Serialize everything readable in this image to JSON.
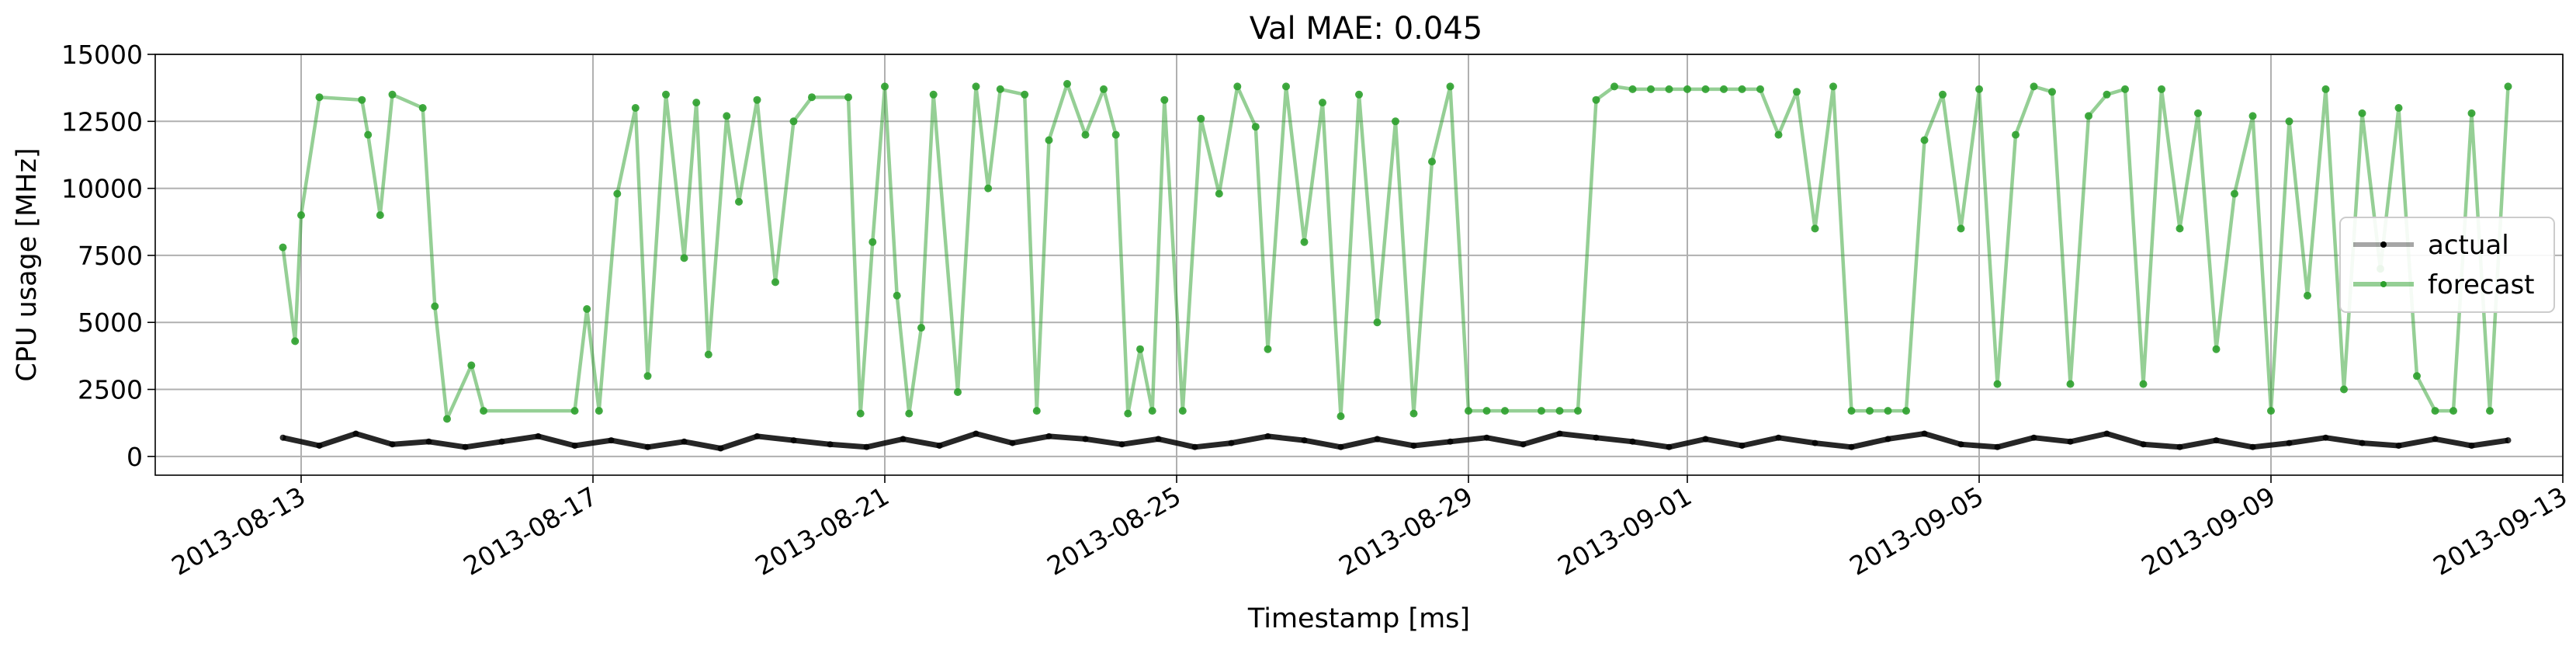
{
  "chart_data": {
    "type": "line",
    "title": "Val MAE: 0.045",
    "xlabel": "Timestamp [ms]",
    "ylabel": "CPU usage [MHz]",
    "xlim": [
      "2013-08-11",
      "2013-09-13"
    ],
    "ylim": [
      -700,
      15000
    ],
    "x_ticks": [
      "2013-08-13",
      "2013-08-17",
      "2013-08-21",
      "2013-08-25",
      "2013-08-29",
      "2013-09-01",
      "2013-09-05",
      "2013-09-09",
      "2013-09-13"
    ],
    "y_ticks": [
      0,
      2500,
      5000,
      7500,
      10000,
      12500,
      15000
    ],
    "y_tick_labels": [
      "0",
      "2500",
      "5000",
      "7500",
      "10000",
      "12500",
      "15000"
    ],
    "grid": true,
    "legend_position": "center-right",
    "series": [
      {
        "name": "actual",
        "color": "#000000",
        "points": [
          [
            "2013-08-12 18:00",
            700
          ],
          [
            "2013-08-13 06:00",
            400
          ],
          [
            "2013-08-13 18:00",
            850
          ],
          [
            "2013-08-14 06:00",
            450
          ],
          [
            "2013-08-14 18:00",
            550
          ],
          [
            "2013-08-15 06:00",
            350
          ],
          [
            "2013-08-15 18:00",
            550
          ],
          [
            "2013-08-16 06:00",
            750
          ],
          [
            "2013-08-16 18:00",
            400
          ],
          [
            "2013-08-17 06:00",
            600
          ],
          [
            "2013-08-17 18:00",
            350
          ],
          [
            "2013-08-18 06:00",
            550
          ],
          [
            "2013-08-18 18:00",
            300
          ],
          [
            "2013-08-19 06:00",
            750
          ],
          [
            "2013-08-19 18:00",
            600
          ],
          [
            "2013-08-20 06:00",
            450
          ],
          [
            "2013-08-20 18:00",
            350
          ],
          [
            "2013-08-21 06:00",
            650
          ],
          [
            "2013-08-21 18:00",
            400
          ],
          [
            "2013-08-22 06:00",
            850
          ],
          [
            "2013-08-22 18:00",
            500
          ],
          [
            "2013-08-23 06:00",
            750
          ],
          [
            "2013-08-23 18:00",
            650
          ],
          [
            "2013-08-24 06:00",
            450
          ],
          [
            "2013-08-24 18:00",
            650
          ],
          [
            "2013-08-25 06:00",
            350
          ],
          [
            "2013-08-25 18:00",
            500
          ],
          [
            "2013-08-26 06:00",
            750
          ],
          [
            "2013-08-26 18:00",
            600
          ],
          [
            "2013-08-27 06:00",
            350
          ],
          [
            "2013-08-27 18:00",
            650
          ],
          [
            "2013-08-28 06:00",
            400
          ],
          [
            "2013-08-28 18:00",
            550
          ],
          [
            "2013-08-29 06:00",
            700
          ],
          [
            "2013-08-29 18:00",
            450
          ],
          [
            "2013-08-30 06:00",
            850
          ],
          [
            "2013-08-30 18:00",
            700
          ],
          [
            "2013-08-31 06:00",
            550
          ],
          [
            "2013-08-31 18:00",
            350
          ],
          [
            "2013-09-01 06:00",
            650
          ],
          [
            "2013-09-01 18:00",
            400
          ],
          [
            "2013-09-02 06:00",
            700
          ],
          [
            "2013-09-02 18:00",
            500
          ],
          [
            "2013-09-03 06:00",
            350
          ],
          [
            "2013-09-03 18:00",
            650
          ],
          [
            "2013-09-04 06:00",
            850
          ],
          [
            "2013-09-04 18:00",
            450
          ],
          [
            "2013-09-05 06:00",
            350
          ],
          [
            "2013-09-05 18:00",
            700
          ],
          [
            "2013-09-06 06:00",
            550
          ],
          [
            "2013-09-06 18:00",
            850
          ],
          [
            "2013-09-07 06:00",
            450
          ],
          [
            "2013-09-07 18:00",
            350
          ],
          [
            "2013-09-08 06:00",
            600
          ],
          [
            "2013-09-08 18:00",
            350
          ],
          [
            "2013-09-09 06:00",
            500
          ],
          [
            "2013-09-09 18:00",
            700
          ],
          [
            "2013-09-10 06:00",
            500
          ],
          [
            "2013-09-10 18:00",
            400
          ],
          [
            "2013-09-11 06:00",
            650
          ],
          [
            "2013-09-11 18:00",
            400
          ],
          [
            "2013-09-12 06:00",
            600
          ]
        ]
      },
      {
        "name": "forecast",
        "color": "#2ca02c",
        "points": [
          [
            "2013-08-12 18:00",
            7800
          ],
          [
            "2013-08-12 22:00",
            4300
          ],
          [
            "2013-08-13 00:00",
            9000
          ],
          [
            "2013-08-13 06:00",
            13400
          ],
          [
            "2013-08-13 20:00",
            13300
          ],
          [
            "2013-08-13 22:00",
            12000
          ],
          [
            "2013-08-14 02:00",
            9000
          ],
          [
            "2013-08-14 06:00",
            13500
          ],
          [
            "2013-08-14 16:00",
            13000
          ],
          [
            "2013-08-14 20:00",
            5600
          ],
          [
            "2013-08-15 00:00",
            1400
          ],
          [
            "2013-08-15 08:00",
            3400
          ],
          [
            "2013-08-15 12:00",
            1700
          ],
          [
            "2013-08-16 18:00",
            1700
          ],
          [
            "2013-08-16 22:00",
            5500
          ],
          [
            "2013-08-17 02:00",
            1700
          ],
          [
            "2013-08-17 08:00",
            9800
          ],
          [
            "2013-08-17 14:00",
            13000
          ],
          [
            "2013-08-17 18:00",
            3000
          ],
          [
            "2013-08-18 00:00",
            13500
          ],
          [
            "2013-08-18 06:00",
            7400
          ],
          [
            "2013-08-18 10:00",
            13200
          ],
          [
            "2013-08-18 14:00",
            3800
          ],
          [
            "2013-08-18 20:00",
            12700
          ],
          [
            "2013-08-19 00:00",
            9500
          ],
          [
            "2013-08-19 06:00",
            13300
          ],
          [
            "2013-08-19 12:00",
            6500
          ],
          [
            "2013-08-19 18:00",
            12500
          ],
          [
            "2013-08-20 00:00",
            13400
          ],
          [
            "2013-08-20 12:00",
            13400
          ],
          [
            "2013-08-20 16:00",
            1600
          ],
          [
            "2013-08-20 20:00",
            8000
          ],
          [
            "2013-08-21 00:00",
            13800
          ],
          [
            "2013-08-21 04:00",
            6000
          ],
          [
            "2013-08-21 08:00",
            1600
          ],
          [
            "2013-08-21 12:00",
            4800
          ],
          [
            "2013-08-21 16:00",
            13500
          ],
          [
            "2013-08-22 00:00",
            2400
          ],
          [
            "2013-08-22 06:00",
            13800
          ],
          [
            "2013-08-22 10:00",
            10000
          ],
          [
            "2013-08-22 14:00",
            13700
          ],
          [
            "2013-08-22 22:00",
            13500
          ],
          [
            "2013-08-23 02:00",
            1700
          ],
          [
            "2013-08-23 06:00",
            11800
          ],
          [
            "2013-08-23 12:00",
            13900
          ],
          [
            "2013-08-23 18:00",
            12000
          ],
          [
            "2013-08-24 00:00",
            13700
          ],
          [
            "2013-08-24 04:00",
            12000
          ],
          [
            "2013-08-24 08:00",
            1600
          ],
          [
            "2013-08-24 12:00",
            4000
          ],
          [
            "2013-08-24 16:00",
            1700
          ],
          [
            "2013-08-24 20:00",
            13300
          ],
          [
            "2013-08-25 02:00",
            1700
          ],
          [
            "2013-08-25 08:00",
            12600
          ],
          [
            "2013-08-25 14:00",
            9800
          ],
          [
            "2013-08-25 20:00",
            13800
          ],
          [
            "2013-08-26 02:00",
            12300
          ],
          [
            "2013-08-26 06:00",
            4000
          ],
          [
            "2013-08-26 12:00",
            13800
          ],
          [
            "2013-08-26 18:00",
            8000
          ],
          [
            "2013-08-27 00:00",
            13200
          ],
          [
            "2013-08-27 06:00",
            1500
          ],
          [
            "2013-08-27 12:00",
            13500
          ],
          [
            "2013-08-27 18:00",
            5000
          ],
          [
            "2013-08-28 00:00",
            12500
          ],
          [
            "2013-08-28 06:00",
            1600
          ],
          [
            "2013-08-28 12:00",
            11000
          ],
          [
            "2013-08-28 18:00",
            13800
          ],
          [
            "2013-08-29 00:00",
            1700
          ],
          [
            "2013-08-29 06:00",
            1700
          ],
          [
            "2013-08-29 12:00",
            1700
          ],
          [
            "2013-08-30 00:00",
            1700
          ],
          [
            "2013-08-30 06:00",
            1700
          ],
          [
            "2013-08-30 12:00",
            1700
          ],
          [
            "2013-08-30 18:00",
            13300
          ],
          [
            "2013-08-31 00:00",
            13800
          ],
          [
            "2013-08-31 06:00",
            13700
          ],
          [
            "2013-08-31 12:00",
            13700
          ],
          [
            "2013-08-31 18:00",
            13700
          ],
          [
            "2013-09-01 00:00",
            13700
          ],
          [
            "2013-09-01 06:00",
            13700
          ],
          [
            "2013-09-01 12:00",
            13700
          ],
          [
            "2013-09-01 18:00",
            13700
          ],
          [
            "2013-09-02 00:00",
            13700
          ],
          [
            "2013-09-02 06:00",
            12000
          ],
          [
            "2013-09-02 12:00",
            13600
          ],
          [
            "2013-09-02 18:00",
            8500
          ],
          [
            "2013-09-03 00:00",
            13800
          ],
          [
            "2013-09-03 06:00",
            1700
          ],
          [
            "2013-09-03 12:00",
            1700
          ],
          [
            "2013-09-03 18:00",
            1700
          ],
          [
            "2013-09-04 00:00",
            1700
          ],
          [
            "2013-09-04 06:00",
            11800
          ],
          [
            "2013-09-04 12:00",
            13500
          ],
          [
            "2013-09-04 18:00",
            8500
          ],
          [
            "2013-09-05 00:00",
            13700
          ],
          [
            "2013-09-05 06:00",
            2700
          ],
          [
            "2013-09-05 12:00",
            12000
          ],
          [
            "2013-09-05 18:00",
            13800
          ],
          [
            "2013-09-06 00:00",
            13600
          ],
          [
            "2013-09-06 06:00",
            2700
          ],
          [
            "2013-09-06 12:00",
            12700
          ],
          [
            "2013-09-06 18:00",
            13500
          ],
          [
            "2013-09-07 00:00",
            13700
          ],
          [
            "2013-09-07 06:00",
            2700
          ],
          [
            "2013-09-07 12:00",
            13700
          ],
          [
            "2013-09-07 18:00",
            8500
          ],
          [
            "2013-09-08 00:00",
            12800
          ],
          [
            "2013-09-08 06:00",
            4000
          ],
          [
            "2013-09-08 12:00",
            9800
          ],
          [
            "2013-09-08 18:00",
            12700
          ],
          [
            "2013-09-09 00:00",
            1700
          ],
          [
            "2013-09-09 06:00",
            12500
          ],
          [
            "2013-09-09 12:00",
            6000
          ],
          [
            "2013-09-09 18:00",
            13700
          ],
          [
            "2013-09-10 00:00",
            2500
          ],
          [
            "2013-09-10 06:00",
            12800
          ],
          [
            "2013-09-10 12:00",
            7000
          ],
          [
            "2013-09-10 18:00",
            13000
          ],
          [
            "2013-09-11 00:00",
            3000
          ],
          [
            "2013-09-11 06:00",
            1700
          ],
          [
            "2013-09-11 12:00",
            1700
          ],
          [
            "2013-09-11 18:00",
            12800
          ],
          [
            "2013-09-12 00:00",
            1700
          ],
          [
            "2013-09-12 06:00",
            13800
          ]
        ]
      }
    ]
  }
}
